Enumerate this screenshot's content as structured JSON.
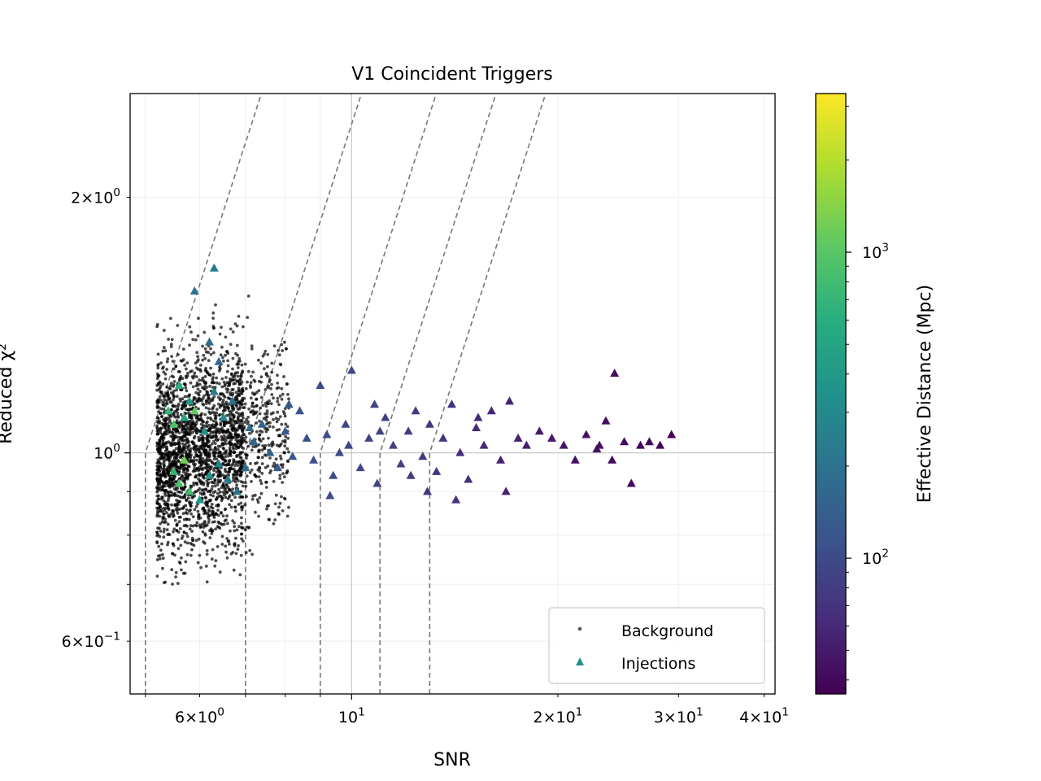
{
  "chart_data": {
    "type": "scatter",
    "title": "V1 Coincident Triggers",
    "xlabel": "SNR",
    "ylabel": "Reduced χ²",
    "xscale": "log",
    "yscale": "log",
    "xlim": [
      4.75,
      41.5
    ],
    "ylim": [
      0.52,
      2.65
    ],
    "grid": true,
    "x_ticks": [
      {
        "value": 6,
        "mant": "6",
        "exp": "0"
      },
      {
        "value": 10,
        "mant": "",
        "exp": "1"
      },
      {
        "value": 20,
        "mant": "2",
        "exp": "1"
      },
      {
        "value": 30,
        "mant": "3",
        "exp": "1"
      },
      {
        "value": 40,
        "mant": "4",
        "exp": "1"
      }
    ],
    "y_ticks": [
      {
        "value": 0.6,
        "mant": "6",
        "exp": "−1"
      },
      {
        "value": 1,
        "mant": "",
        "exp": "0"
      },
      {
        "value": 2,
        "mant": "2",
        "exp": "0"
      }
    ],
    "legend": {
      "placement": "lower right",
      "entries": [
        {
          "label": "Background",
          "marker": "dot",
          "color": "#555555"
        },
        {
          "label": "Injections",
          "marker": "triangle",
          "color": "#21918c"
        }
      ]
    },
    "colorbar": {
      "label": "Effective Distance (Mpc)",
      "colormap": "viridis",
      "scale": "log",
      "range": [
        36,
        3300
      ],
      "ticks": [
        {
          "value": 100,
          "mant": "",
          "exp": "2"
        },
        {
          "value": 1000,
          "mant": "",
          "exp": "3"
        }
      ]
    },
    "threshold_curves": {
      "style": "dashed",
      "color": "#777777",
      "snr_cut": [
        5.0,
        7.0,
        9.0,
        11.0,
        13.0
      ],
      "form": "chisq = 1.0 for snr < snr_cut, else (snr/snr_cut)^2.5"
    },
    "series": [
      {
        "name": "Background",
        "marker": "dot",
        "color": "#000000",
        "description": "dense cloud of background triggers",
        "snr_range": [
          5.2,
          8.0
        ],
        "chisq_range": [
          0.7,
          1.7
        ],
        "count": 2600
      },
      {
        "name": "Injections",
        "marker": "triangle",
        "colored_by": "effective distance (Mpc)",
        "points": [
          [
            6.3,
            1.65,
            230
          ],
          [
            5.9,
            1.55,
            200
          ],
          [
            6.2,
            1.35,
            180
          ],
          [
            6.4,
            1.28,
            170
          ],
          [
            5.6,
            1.2,
            600
          ],
          [
            5.8,
            1.15,
            420
          ],
          [
            5.4,
            1.12,
            700
          ],
          [
            5.5,
            1.08,
            900
          ],
          [
            5.7,
            1.1,
            500
          ],
          [
            5.9,
            1.12,
            1100
          ],
          [
            6.1,
            1.06,
            360
          ],
          [
            6.3,
            1.18,
            240
          ],
          [
            6.5,
            1.1,
            300
          ],
          [
            6.7,
            1.15,
            200
          ],
          [
            5.5,
            0.95,
            700
          ],
          [
            5.7,
            0.98,
            1200
          ],
          [
            5.6,
            0.92,
            900
          ],
          [
            5.8,
            0.9,
            800
          ],
          [
            6.0,
            0.88,
            400
          ],
          [
            6.2,
            0.94,
            350
          ],
          [
            6.4,
            0.97,
            260
          ],
          [
            6.6,
            0.93,
            230
          ],
          [
            6.8,
            0.9,
            200
          ],
          [
            7.0,
            0.96,
            180
          ],
          [
            7.2,
            1.03,
            160
          ],
          [
            7.4,
            1.08,
            150
          ],
          [
            7.6,
            1.0,
            140
          ],
          [
            7.8,
            0.96,
            130
          ],
          [
            8.0,
            1.06,
            125
          ],
          [
            8.2,
            0.99,
            120
          ],
          [
            8.4,
            1.12,
            115
          ],
          [
            8.6,
            1.04,
            110
          ],
          [
            8.8,
            0.98,
            108
          ],
          [
            9.0,
            1.2,
            105
          ],
          [
            9.2,
            1.05,
            102
          ],
          [
            9.4,
            0.94,
            100
          ],
          [
            9.6,
            1.0,
            98
          ],
          [
            9.8,
            1.08,
            96
          ],
          [
            10.0,
            1.25,
            94
          ],
          [
            10.3,
            0.96,
            92
          ],
          [
            10.6,
            1.04,
            90
          ],
          [
            10.9,
            0.92,
            88
          ],
          [
            11.2,
            1.1,
            86
          ],
          [
            11.5,
            1.02,
            84
          ],
          [
            11.8,
            0.97,
            82
          ],
          [
            12.1,
            1.06,
            80
          ],
          [
            12.4,
            1.12,
            78
          ],
          [
            12.7,
            0.99,
            76
          ],
          [
            13.0,
            1.08,
            74
          ],
          [
            13.3,
            0.95,
            72
          ],
          [
            13.6,
            1.04,
            70
          ],
          [
            14.0,
            1.14,
            68
          ],
          [
            14.4,
            1.0,
            66
          ],
          [
            14.8,
            0.93,
            64
          ],
          [
            15.2,
            1.07,
            62
          ],
          [
            15.6,
            1.02,
            60
          ],
          [
            16.0,
            1.12,
            58
          ],
          [
            16.5,
            0.98,
            56
          ],
          [
            17.0,
            1.15,
            55
          ],
          [
            17.5,
            1.04,
            54
          ],
          [
            18.0,
            1.02,
            52
          ],
          [
            18.8,
            1.06,
            50
          ],
          [
            19.6,
            1.04,
            48
          ],
          [
            20.4,
            1.02,
            47
          ],
          [
            21.2,
            0.98,
            46
          ],
          [
            22.0,
            1.05,
            45
          ],
          [
            22.8,
            1.01,
            44
          ],
          [
            23.5,
            1.09,
            43
          ],
          [
            24.2,
            1.24,
            42
          ],
          [
            25.0,
            1.03,
            41
          ],
          [
            25.6,
            0.92,
            40
          ],
          [
            26.4,
            1.02,
            39
          ],
          [
            27.2,
            1.03,
            38
          ],
          [
            28.2,
            1.02,
            37
          ],
          [
            29.3,
            1.05,
            36
          ],
          [
            12.9,
            0.9,
            74
          ],
          [
            11.0,
            1.06,
            88
          ],
          [
            9.9,
            1.02,
            96
          ],
          [
            8.1,
            1.14,
            122
          ],
          [
            7.1,
            1.07,
            170
          ],
          [
            16.8,
            0.9,
            56
          ],
          [
            15.3,
            1.1,
            61
          ],
          [
            24.0,
            0.98,
            42
          ],
          [
            23.0,
            1.02,
            44
          ],
          [
            14.2,
            0.88,
            67
          ],
          [
            10.8,
            1.14,
            89
          ],
          [
            12.2,
            0.94,
            80
          ],
          [
            9.3,
            0.89,
            103
          ]
        ]
      }
    ]
  }
}
